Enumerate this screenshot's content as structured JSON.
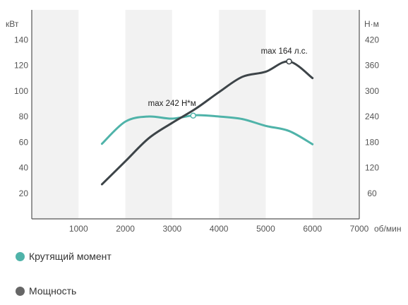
{
  "chart_data": {
    "type": "line",
    "x_unit": "об/мин",
    "y_left_unit": "кВт",
    "y_right_unit": "Н·м",
    "x_ticks": [
      1000,
      2000,
      3000,
      4000,
      5000,
      6000,
      7000
    ],
    "x_range": [
      0,
      7000
    ],
    "y_left_ticks": [
      20,
      40,
      60,
      80,
      100,
      120,
      140
    ],
    "y_left_range": [
      0,
      160
    ],
    "y_right_ticks": [
      60,
      120,
      180,
      240,
      300,
      360,
      420
    ],
    "y_right_range": [
      0,
      480
    ],
    "grid": "vertical-bands",
    "series": [
      {
        "name": "Крутящий момент",
        "axis": "right",
        "color": "#4fb3a9",
        "x": [
          1500,
          2000,
          2500,
          3000,
          3500,
          4000,
          4500,
          5000,
          5500,
          6000
        ],
        "y": [
          176,
          228,
          240,
          235,
          243,
          240,
          234,
          218,
          206,
          175
        ]
      },
      {
        "name": "Мощность",
        "axis": "left",
        "color": "#3d4448",
        "x": [
          1500,
          2000,
          2500,
          3000,
          3500,
          4000,
          4500,
          5000,
          5500,
          6000
        ],
        "y": [
          27,
          45,
          63,
          75,
          86,
          99,
          111,
          115,
          123,
          110
        ]
      }
    ],
    "annotations": [
      {
        "text": "max 242 Н*м",
        "series": 0,
        "x": 3450,
        "y": 242
      },
      {
        "text": "max 164 л.с.",
        "series": 1,
        "x": 5500,
        "y": 123
      }
    ]
  },
  "legend": [
    {
      "label": "Крутящий момент",
      "color": "#4fb3a9"
    },
    {
      "label": "Мощность",
      "color": "#666666"
    }
  ]
}
